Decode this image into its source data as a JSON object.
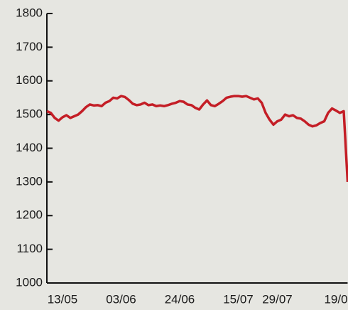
{
  "chart_data": {
    "type": "line",
    "categories": [
      null,
      null,
      null,
      null,
      "13/05",
      null,
      null,
      null,
      null,
      null,
      null,
      null,
      null,
      null,
      null,
      null,
      null,
      null,
      null,
      "03/06",
      null,
      null,
      null,
      null,
      null,
      null,
      null,
      null,
      null,
      null,
      null,
      null,
      null,
      null,
      "24/06",
      null,
      null,
      null,
      null,
      null,
      null,
      null,
      null,
      null,
      null,
      null,
      null,
      null,
      null,
      "15/07",
      null,
      null,
      null,
      null,
      null,
      null,
      null,
      null,
      null,
      "29/07",
      null,
      null,
      null,
      null,
      null,
      null,
      null,
      null,
      null,
      null,
      null,
      null,
      null,
      null,
      "19/0",
      null,
      null,
      null
    ],
    "series": [
      {
        "name": null,
        "color": "#c41e26",
        "values": [
          1510,
          1505,
          1490,
          1482,
          1492,
          1498,
          1490,
          1495,
          1500,
          1510,
          1522,
          1530,
          1527,
          1528,
          1525,
          1535,
          1540,
          1550,
          1548,
          1555,
          1552,
          1543,
          1532,
          1528,
          1530,
          1535,
          1528,
          1530,
          1525,
          1527,
          1525,
          1528,
          1532,
          1535,
          1540,
          1538,
          1530,
          1528,
          1520,
          1515,
          1530,
          1542,
          1528,
          1525,
          1532,
          1540,
          1550,
          1553,
          1555,
          1555,
          1553,
          1555,
          1550,
          1545,
          1548,
          1535,
          1505,
          1485,
          1470,
          1480,
          1485,
          1500,
          1495,
          1498,
          1490,
          1488,
          1480,
          1470,
          1465,
          1468,
          1475,
          1480,
          1505,
          1518,
          1512,
          1505,
          1510,
          1300
        ]
      }
    ],
    "ylim": [
      1000,
      1800
    ],
    "yticks": [
      1000,
      1100,
      1200,
      1300,
      1400,
      1500,
      1600,
      1700,
      1800
    ],
    "grid": false
  }
}
